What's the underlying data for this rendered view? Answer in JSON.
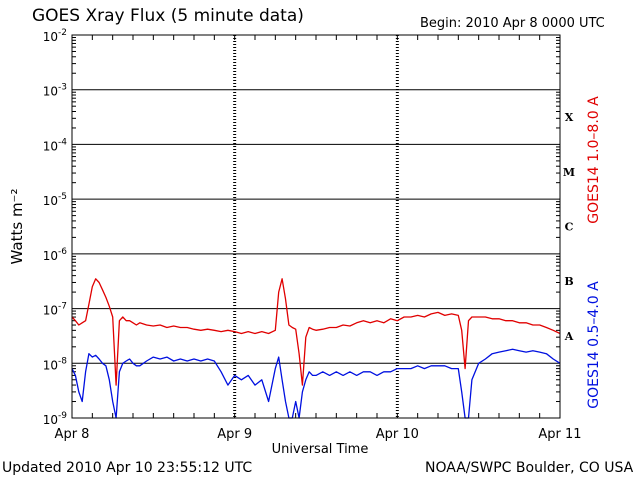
{
  "title": "GOES Xray Flux (5 minute data)",
  "begin": "Begin:  2010 Apr 8 0000 UTC",
  "updated": "Updated 2010 Apr 10 23:55:12 UTC",
  "credit": "NOAA/SWPC Boulder, CO USA",
  "colors": {
    "long": "#e00000",
    "short": "#0010e0",
    "grid": "#000000"
  },
  "chart_data": {
    "type": "line",
    "title": "GOES Xray Flux (5 minute data)",
    "xlabel": "Universal Time",
    "ylabel": "Watts m⁻²",
    "yscale": "log",
    "ylim": [
      1e-09,
      0.01
    ],
    "xlim": [
      0,
      72
    ],
    "x_unit": "hours since 2010 Apr 8 0000 UTC",
    "x_ticks": [
      {
        "x": 0,
        "label": "Apr 8"
      },
      {
        "x": 24,
        "label": "Apr 9"
      },
      {
        "x": 48,
        "label": "Apr 10"
      },
      {
        "x": 72,
        "label": "Apr 11"
      }
    ],
    "y_ticks": [
      {
        "exp": -9,
        "label": "10",
        "sup": "-9"
      },
      {
        "exp": -8,
        "label": "10",
        "sup": "-8"
      },
      {
        "exp": -7,
        "label": "10",
        "sup": "-7"
      },
      {
        "exp": -6,
        "label": "10",
        "sup": "-6"
      },
      {
        "exp": -5,
        "label": "10",
        "sup": "-5"
      },
      {
        "exp": -4,
        "label": "10",
        "sup": "-4"
      },
      {
        "exp": -3,
        "label": "10",
        "sup": "-3"
      },
      {
        "exp": -2,
        "label": "10",
        "sup": "-2"
      }
    ],
    "flare_classes": [
      {
        "label": "A",
        "lo": -8,
        "hi": -7
      },
      {
        "label": "B",
        "lo": -7,
        "hi": -6
      },
      {
        "label": "C",
        "lo": -6,
        "hi": -5
      },
      {
        "label": "M",
        "lo": -5,
        "hi": -4
      },
      {
        "label": "X",
        "lo": -4,
        "hi": -3
      }
    ],
    "grid": true,
    "series": [
      {
        "name": "GOES14 1.0–8.0 A",
        "color": "#e00000",
        "x": [
          0,
          0.5,
          1,
          1.5,
          2,
          2.5,
          3,
          3.5,
          4,
          4.5,
          5,
          5.5,
          6,
          6.5,
          7,
          7.5,
          8,
          8.5,
          9,
          9.5,
          10,
          11,
          12,
          13,
          14,
          15,
          16,
          17,
          18,
          19,
          20,
          21,
          22,
          23,
          24,
          25,
          26,
          27,
          28,
          29,
          30,
          30.5,
          31,
          31.5,
          32,
          32.5,
          33,
          33.5,
          34,
          34.5,
          35,
          35.5,
          36,
          37,
          38,
          39,
          40,
          41,
          42,
          43,
          44,
          45,
          46,
          47,
          48,
          49,
          50,
          51,
          52,
          53,
          54,
          55,
          56,
          57,
          57.5,
          58,
          58.5,
          59,
          60,
          61,
          62,
          63,
          64,
          65,
          66,
          67,
          68,
          69,
          70,
          71,
          72
        ],
        "y": [
          7e-08,
          6e-08,
          5e-08,
          5.5e-08,
          6e-08,
          1.2e-07,
          2.5e-07,
          3.5e-07,
          3e-07,
          2.2e-07,
          1.6e-07,
          1.1e-07,
          7e-08,
          4e-09,
          6e-08,
          7e-08,
          6e-08,
          6e-08,
          5.5e-08,
          5e-08,
          5.5e-08,
          5e-08,
          4.8e-08,
          5e-08,
          4.5e-08,
          4.8e-08,
          4.5e-08,
          4.5e-08,
          4.2e-08,
          4e-08,
          4.2e-08,
          4e-08,
          3.8e-08,
          4e-08,
          3.8e-08,
          3.5e-08,
          3.8e-08,
          3.5e-08,
          3.8e-08,
          3.5e-08,
          4e-08,
          2e-07,
          3.5e-07,
          1.5e-07,
          5e-08,
          4.5e-08,
          4.2e-08,
          1.5e-08,
          4e-09,
          3e-08,
          4.5e-08,
          4.2e-08,
          4e-08,
          4.2e-08,
          4.5e-08,
          4.5e-08,
          5e-08,
          4.8e-08,
          5.5e-08,
          6e-08,
          5.5e-08,
          6e-08,
          5.5e-08,
          6.5e-08,
          6e-08,
          7e-08,
          7e-08,
          7.5e-08,
          7e-08,
          8e-08,
          8.5e-08,
          7.5e-08,
          8e-08,
          7.5e-08,
          4e-08,
          8e-09,
          6e-08,
          7e-08,
          7e-08,
          7e-08,
          6.5e-08,
          6.5e-08,
          6e-08,
          6e-08,
          5.5e-08,
          5.5e-08,
          5e-08,
          5e-08,
          4.5e-08,
          4e-08,
          3.5e-08
        ]
      },
      {
        "name": "GOES14 0.5–4.0 A",
        "color": "#0010e0",
        "x": [
          0,
          0.5,
          1,
          1.5,
          2,
          2.5,
          3,
          3.5,
          4,
          4.5,
          5,
          5.5,
          6,
          6.5,
          7,
          7.5,
          8,
          8.5,
          9,
          9.5,
          10,
          11,
          12,
          13,
          14,
          15,
          16,
          17,
          18,
          19,
          20,
          21,
          22,
          23,
          24,
          25,
          26,
          27,
          28,
          29,
          30,
          30.5,
          31,
          31.5,
          32,
          32.5,
          33,
          33.5,
          34,
          34.5,
          35,
          35.5,
          36,
          37,
          38,
          39,
          40,
          41,
          42,
          43,
          44,
          45,
          46,
          47,
          48,
          49,
          50,
          51,
          52,
          53,
          54,
          55,
          56,
          57,
          57.5,
          58,
          58.5,
          59,
          60,
          61,
          62,
          63,
          64,
          65,
          66,
          67,
          68,
          69,
          70,
          71,
          72
        ],
        "y": [
          8e-09,
          6e-09,
          3e-09,
          2e-09,
          7e-09,
          1.5e-08,
          1.3e-08,
          1.4e-08,
          1.2e-08,
          1e-08,
          9e-09,
          5e-09,
          2e-09,
          1e-09,
          7e-09,
          1e-08,
          1.1e-08,
          1.2e-08,
          1e-08,
          9e-09,
          9e-09,
          1.1e-08,
          1.3e-08,
          1.2e-08,
          1.3e-08,
          1.1e-08,
          1.2e-08,
          1.1e-08,
          1.2e-08,
          1.1e-08,
          1.2e-08,
          1.1e-08,
          7e-09,
          4e-09,
          6e-09,
          5e-09,
          6e-09,
          4e-09,
          5e-09,
          2e-09,
          8e-09,
          1.3e-08,
          5e-09,
          2e-09,
          1e-09,
          1e-09,
          2e-09,
          1e-09,
          3e-09,
          5e-09,
          7e-09,
          6e-09,
          6e-09,
          7e-09,
          6e-09,
          7e-09,
          6e-09,
          7e-09,
          6e-09,
          7e-09,
          7e-09,
          6e-09,
          7e-09,
          7e-09,
          8e-09,
          8e-09,
          8e-09,
          9e-09,
          8e-09,
          9e-09,
          9e-09,
          9e-09,
          8e-09,
          8e-09,
          3e-09,
          1e-09,
          1e-09,
          5e-09,
          1e-08,
          1.2e-08,
          1.5e-08,
          1.6e-08,
          1.7e-08,
          1.8e-08,
          1.7e-08,
          1.6e-08,
          1.7e-08,
          1.6e-08,
          1.5e-08,
          1.2e-08,
          1e-08
        ]
      }
    ]
  }
}
